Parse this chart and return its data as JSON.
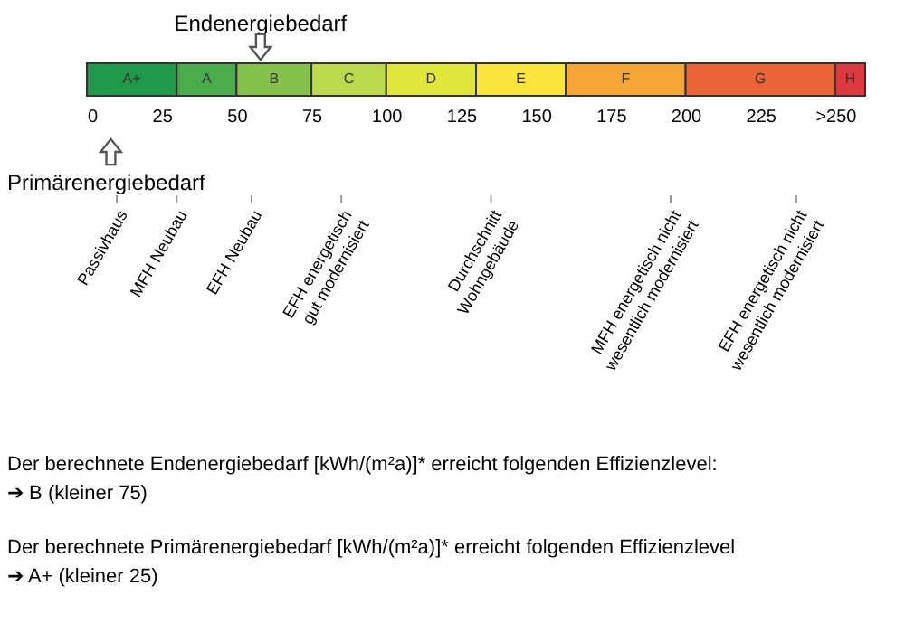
{
  "chart_data": {
    "type": "bar",
    "orientation": "horizontal",
    "stacked": true,
    "categories": [
      null
    ],
    "xlim": [
      0,
      260
    ],
    "xticks": [
      0,
      25,
      50,
      75,
      100,
      125,
      150,
      175,
      200,
      225,
      {
        "value": 250,
        "label": ">250"
      }
    ],
    "series": [
      {
        "name": "A+",
        "color": "#1f9a4a",
        "values": [
          30
        ]
      },
      {
        "name": "A",
        "color": "#4aab4c",
        "values": [
          20
        ]
      },
      {
        "name": "B",
        "color": "#86c14e",
        "values": [
          25
        ]
      },
      {
        "name": "C",
        "color": "#bcd84c",
        "values": [
          25
        ]
      },
      {
        "name": "D",
        "color": "#e2e63a",
        "values": [
          30
        ]
      },
      {
        "name": "E",
        "color": "#f8e43a",
        "values": [
          30
        ]
      },
      {
        "name": "F",
        "color": "#f6a636",
        "values": [
          40
        ]
      },
      {
        "name": "G",
        "color": "#ea6438",
        "values": [
          50
        ]
      },
      {
        "name": "H",
        "color": "#dd3a40",
        "values": [
          10
        ]
      }
    ],
    "ref_lines": [
      {
        "axis": "x",
        "value": 58,
        "label": "Endenergiebedarf"
      },
      {
        "axis": "x",
        "value": 8,
        "label": "Primärenergiebedarf"
      },
      {
        "axis": "x",
        "value": 10,
        "label": "Passivhaus"
      },
      {
        "axis": "x",
        "value": 30,
        "label": "MFH Neubau"
      },
      {
        "axis": "x",
        "value": 55,
        "label": "EFH Neubau"
      },
      {
        "axis": "x",
        "value": 85,
        "label": "EFH energetisch\ngut modernisiert"
      },
      {
        "axis": "x",
        "value": 135,
        "label": "Durchschnitt\nWohngebäude"
      },
      {
        "axis": "x",
        "value": 195,
        "label": "MFH energetisch nicht\nwesentlich modernisiert"
      },
      {
        "axis": "x",
        "value": 237,
        "label": "EFH energetisch nicht\nwesentlich modernisiert"
      }
    ],
    "annotations": [
      "Der berechnete Endenergiebedarf [kWh/(m²a)]* erreicht folgenden Effizienzlevel:\n➔ B (kleiner 75)",
      "Der berechnete Primärenergiebedarf [kWh/(m²a)]* erreicht folgenden Effizienzlevel\n➔ A+ (kleiner 25)"
    ]
  }
}
